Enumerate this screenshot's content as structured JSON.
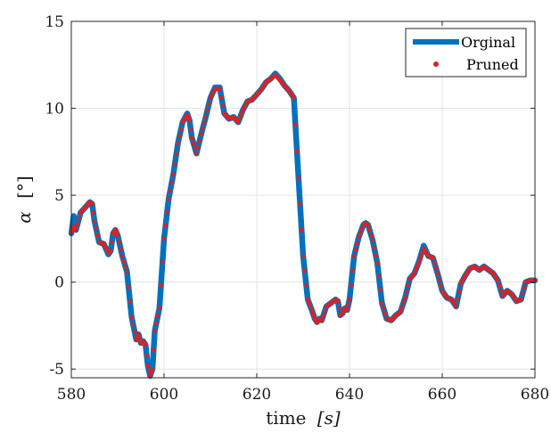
{
  "chart_data": {
    "type": "line",
    "title": "",
    "xlabel_main": "time",
    "xlabel_unit": "[s]",
    "ylabel_main": "α",
    "ylabel_unit": "[°]",
    "xlim": [
      580,
      680
    ],
    "ylim": [
      -5.5,
      15
    ],
    "xticks": [
      580,
      600,
      620,
      640,
      660,
      680
    ],
    "yticks": [
      -5,
      0,
      5,
      10,
      15
    ],
    "grid": true,
    "legend_position": "top-right",
    "series": [
      {
        "name": "Orginal",
        "style": "line",
        "color": "#0072BD",
        "x": [
          580,
          580.5,
          581,
          582,
          583,
          584,
          584.5,
          585,
          586,
          587,
          588,
          588.5,
          589,
          589.5,
          590,
          591,
          592,
          593,
          594,
          594.5,
          595,
          595.5,
          596,
          596.5,
          597,
          597.5,
          598,
          599,
          600,
          601,
          602,
          603,
          604,
          605,
          605.5,
          606,
          607,
          608,
          609,
          610,
          611,
          612,
          613,
          614,
          615,
          616,
          617,
          618,
          619,
          620,
          621,
          622,
          623,
          624,
          625,
          626,
          627,
          628,
          629,
          630,
          631,
          632,
          632.5,
          633,
          633.5,
          634,
          635,
          636,
          637,
          637.5,
          638,
          638.5,
          639,
          639.5,
          640,
          641,
          642,
          643,
          643.5,
          644,
          645,
          646,
          647,
          648,
          649,
          650,
          651,
          652,
          653,
          654,
          655,
          656,
          657,
          658,
          659,
          660,
          661,
          662,
          663,
          664,
          665,
          666,
          667,
          668,
          669,
          670,
          671,
          672,
          673,
          674,
          675,
          676,
          677,
          678,
          679,
          680
        ],
        "y": [
          2.8,
          3.8,
          3.0,
          4.0,
          4.3,
          4.6,
          4.5,
          3.5,
          2.3,
          2.2,
          1.6,
          1.8,
          2.8,
          3.0,
          2.7,
          1.5,
          0.6,
          -2.0,
          -3.3,
          -3.0,
          -3.5,
          -3.4,
          -3.6,
          -4.8,
          -5.4,
          -5.0,
          -2.8,
          -1.5,
          2.5,
          4.8,
          6.2,
          8.0,
          9.2,
          9.7,
          9.3,
          8.3,
          7.4,
          8.5,
          9.5,
          10.6,
          11.2,
          11.2,
          9.7,
          9.4,
          9.5,
          9.2,
          9.9,
          10.4,
          10.5,
          10.8,
          11.1,
          11.5,
          11.7,
          12.0,
          11.7,
          11.3,
          11.0,
          10.6,
          6.0,
          1.5,
          -1.0,
          -1.7,
          -2.1,
          -2.3,
          -2.1,
          -2.2,
          -1.4,
          -1.2,
          -1.0,
          -1.1,
          -1.9,
          -1.8,
          -1.5,
          -1.6,
          -1.0,
          1.5,
          2.6,
          3.3,
          3.4,
          3.3,
          2.4,
          1.1,
          -1.2,
          -2.1,
          -2.2,
          -1.9,
          -1.7,
          -0.9,
          0.2,
          0.5,
          1.2,
          2.1,
          1.5,
          1.4,
          0.5,
          -0.5,
          -0.9,
          -1.0,
          -1.4,
          -0.1,
          0.4,
          0.8,
          0.9,
          0.7,
          0.9,
          0.7,
          0.5,
          0.1,
          -0.8,
          -0.5,
          -0.7,
          -1.1,
          -1.0,
          0.0,
          0.1,
          0.1
        ]
      },
      {
        "name": "Pruned",
        "style": "dots",
        "color": "#E02020",
        "x": [
          580,
          580.5,
          581,
          582,
          583,
          584,
          584.5,
          585,
          586,
          587,
          588,
          588.5,
          589,
          589.5,
          590,
          591,
          592,
          593,
          594,
          594.5,
          595,
          595.5,
          596,
          596.5,
          597,
          597.5,
          598,
          599,
          600,
          601,
          602,
          603,
          604,
          605,
          605.5,
          606,
          607,
          608,
          609,
          610,
          611,
          612,
          613,
          614,
          615,
          616,
          617,
          618,
          619,
          620,
          621,
          622,
          623,
          624,
          625,
          626,
          627,
          628,
          629,
          630,
          631,
          632,
          632.5,
          633,
          633.5,
          634,
          635,
          636,
          637,
          637.5,
          638,
          638.5,
          639,
          639.5,
          640,
          641,
          642,
          643,
          643.5,
          644,
          645,
          646,
          647,
          648,
          649,
          650,
          651,
          652,
          653,
          654,
          655,
          656,
          657,
          658,
          659,
          660,
          661,
          662,
          663,
          664,
          665,
          666,
          667,
          668,
          669,
          670,
          671,
          672,
          673,
          674,
          675,
          676,
          677,
          678,
          679,
          680
        ],
        "y": [
          2.9,
          3.2,
          3.0,
          4.0,
          4.3,
          4.6,
          4.5,
          3.5,
          2.3,
          2.2,
          1.7,
          1.8,
          2.8,
          3.0,
          2.7,
          1.5,
          0.6,
          -2.0,
          -3.3,
          -3.0,
          -3.5,
          -3.4,
          -3.6,
          -4.8,
          -5.4,
          -5.0,
          -2.8,
          -1.5,
          2.5,
          4.8,
          6.2,
          8.0,
          9.2,
          9.6,
          9.3,
          8.3,
          7.4,
          8.5,
          9.5,
          10.6,
          11.1,
          11.1,
          9.7,
          9.4,
          9.5,
          9.2,
          9.9,
          10.4,
          10.5,
          10.8,
          11.1,
          11.5,
          11.7,
          11.9,
          11.6,
          11.3,
          11.0,
          10.6,
          6.0,
          1.5,
          -1.0,
          -1.7,
          -2.1,
          -2.3,
          -2.1,
          -2.2,
          -1.4,
          -1.2,
          -1.0,
          -1.1,
          -1.9,
          -1.8,
          -1.5,
          -1.6,
          -1.0,
          1.5,
          2.6,
          3.3,
          3.4,
          3.3,
          2.4,
          1.1,
          -1.2,
          -2.1,
          -2.2,
          -1.9,
          -1.7,
          -0.9,
          0.2,
          0.5,
          1.2,
          1.9,
          1.5,
          1.4,
          0.5,
          -0.5,
          -0.9,
          -1.0,
          -1.4,
          -0.1,
          0.4,
          0.8,
          0.9,
          0.7,
          0.9,
          0.7,
          0.5,
          0.1,
          -0.8,
          -0.5,
          -0.7,
          -1.1,
          -1.0,
          0.0,
          0.1,
          0.1
        ]
      }
    ]
  }
}
